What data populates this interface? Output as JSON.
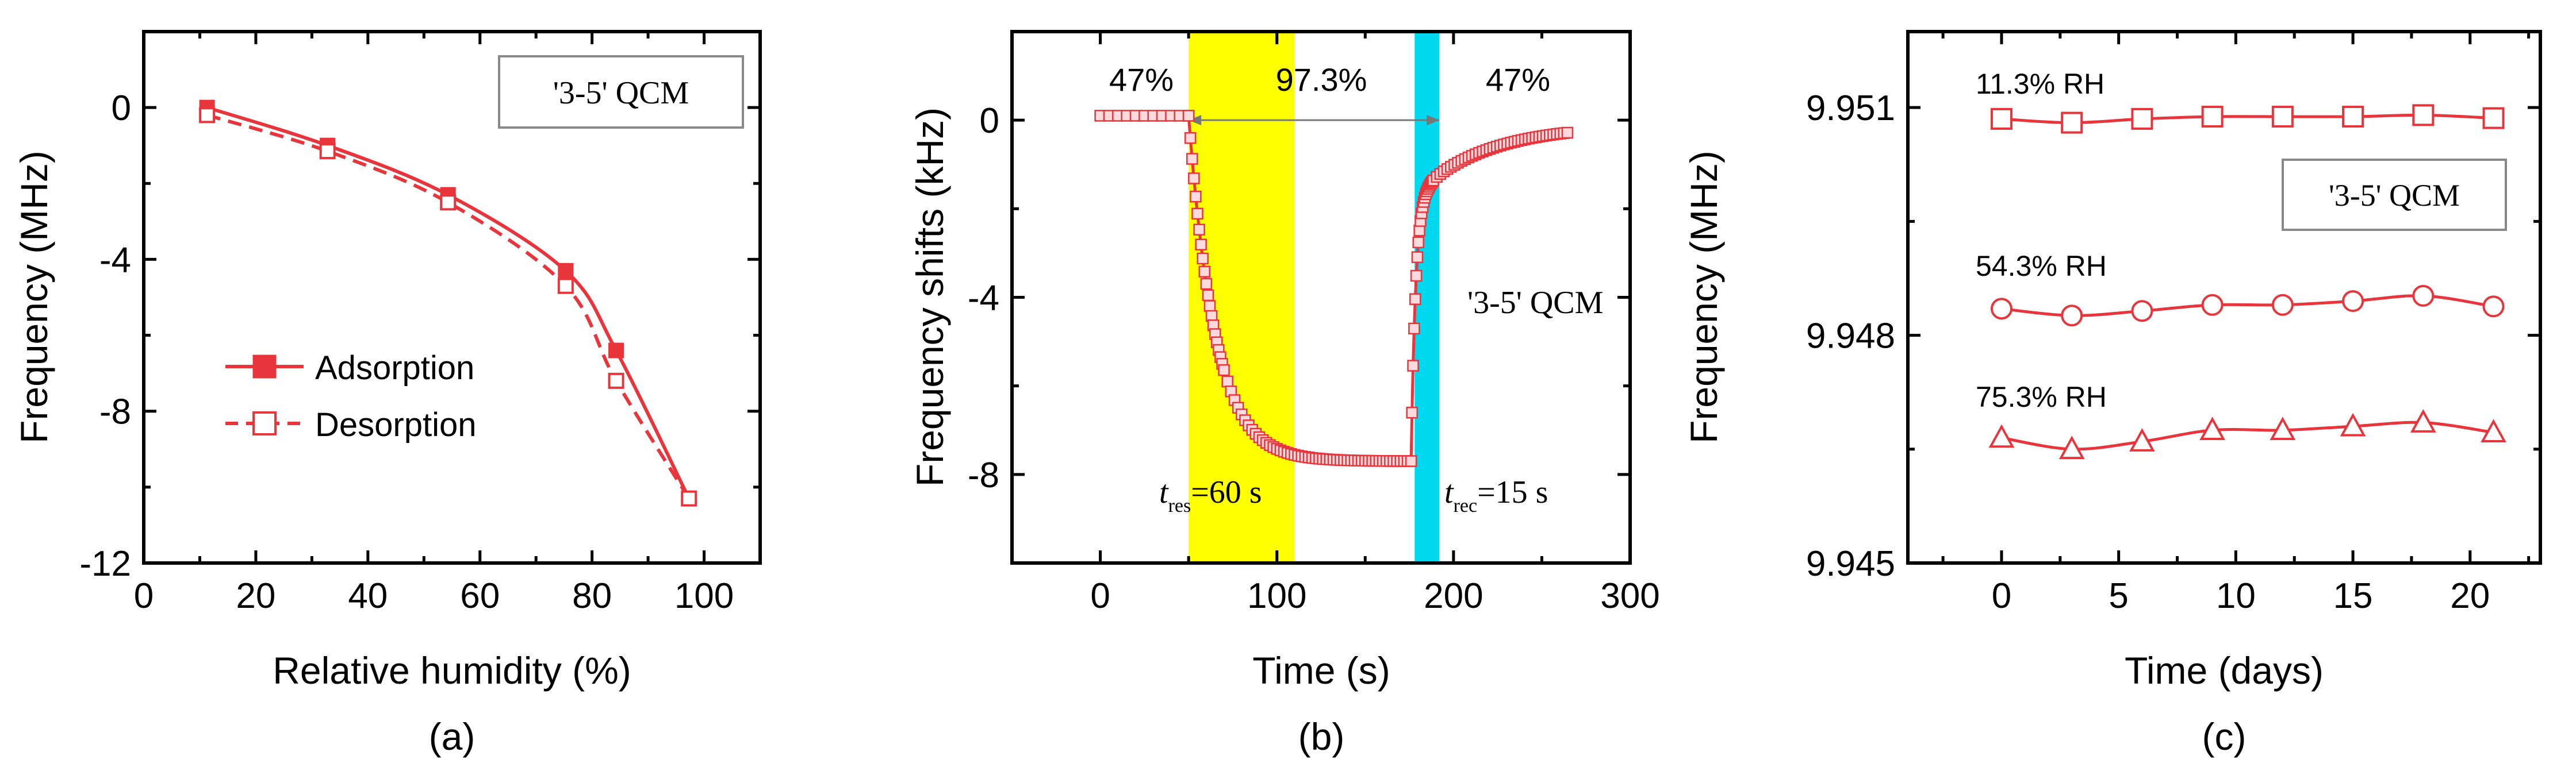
{
  "colors": {
    "series": "#e8343b",
    "marker_fill_light": "#ffd9dc",
    "response_band": "#ffff00",
    "recovery_band": "#00d8f0",
    "axis": "#000000",
    "box_border": "#888888"
  },
  "chart_data": [
    {
      "panel": "(a)",
      "type": "line",
      "xlabel": "Relative humidity (%)",
      "ylabel": "Frequency (MHz)",
      "xlim": [
        0,
        110
      ],
      "ylim": [
        -12,
        2
      ],
      "xticks": [
        0,
        20,
        40,
        60,
        80,
        100
      ],
      "xtick_labels": [
        "0",
        "20",
        "40",
        "60",
        "80",
        "100"
      ],
      "yticks": [
        0,
        -4,
        -8,
        -12
      ],
      "ytick_labels": [
        "0",
        "-4",
        "-8",
        "-12"
      ],
      "box_label": "'3-5' QCM",
      "series": [
        {
          "name": "Adsorption",
          "style": "solid",
          "marker": "filled-square",
          "x": [
            11.3,
            32.8,
            54.3,
            75.3,
            84.3,
            97.3
          ],
          "y": [
            0.0,
            -1.0,
            -2.3,
            -4.3,
            -6.4,
            -10.3
          ]
        },
        {
          "name": "Desorption",
          "style": "dashed",
          "marker": "open-square",
          "x": [
            11.3,
            32.8,
            54.3,
            75.3,
            84.3,
            97.3
          ],
          "y": [
            -0.2,
            -1.15,
            -2.5,
            -4.7,
            -7.2,
            -10.3
          ]
        }
      ]
    },
    {
      "panel": "(b)",
      "type": "line",
      "xlabel": "Time (s)",
      "ylabel": "Frequency shifts (kHz)",
      "xlim": [
        -50,
        300
      ],
      "ylim": [
        -10,
        2
      ],
      "xticks": [
        0,
        100,
        200,
        300
      ],
      "xtick_labels": [
        "0",
        "100",
        "200",
        "300"
      ],
      "yticks": [
        0,
        -4,
        -8
      ],
      "ytick_labels": [
        "0",
        "-4",
        "-8"
      ],
      "box_label": "'3-5' QCM",
      "phase_labels": [
        "47%",
        "97.3%",
        "47%"
      ],
      "response_band": [
        50,
        110
      ],
      "recovery_band": [
        178,
        192
      ],
      "arrow_span": [
        50,
        192
      ],
      "annotations": {
        "response": {
          "symbol": "t",
          "subscript": "res",
          "value": "=60 s"
        },
        "recovery": {
          "symbol": "t",
          "subscript": "rec",
          "value": "=15 s"
        }
      },
      "series": [
        {
          "name": "Frequency shift",
          "marker": "open-square",
          "segments": [
            {
              "phase": "baseline",
              "x_start": 0,
              "x_end": 50,
              "level": 0.1
            },
            {
              "phase": "response",
              "x_start": 50,
              "x_end": 176,
              "from": 0.1,
              "to": -7.7,
              "tau": 15
            },
            {
              "phase": "recovery",
              "x_start": 176,
              "x_end": 265,
              "from": -7.7,
              "to": -0.1,
              "tau": 10
            }
          ]
        }
      ]
    },
    {
      "panel": "(c)",
      "type": "line",
      "xlabel": "Time (days)",
      "ylabel": "Frequency (MHz)",
      "xlim": [
        -4,
        23
      ],
      "ylim": [
        9.945,
        9.952
      ],
      "xticks": [
        0,
        5,
        10,
        15,
        20
      ],
      "xtick_labels": [
        "0",
        "5",
        "10",
        "15",
        "20"
      ],
      "yticks": [
        9.945,
        9.948,
        9.951
      ],
      "ytick_labels": [
        "9.945",
        "9.948",
        "9.951"
      ],
      "box_label": "'3-5' QCM",
      "x": [
        0,
        3,
        6,
        9,
        12,
        15,
        18,
        21
      ],
      "series": [
        {
          "name": "11.3% RH",
          "marker": "open-square",
          "y": [
            9.95085,
            9.9508,
            9.95085,
            9.95088,
            9.95088,
            9.95088,
            9.9509,
            9.95086
          ]
        },
        {
          "name": "54.3% RH",
          "marker": "open-circle",
          "y": [
            9.94835,
            9.94826,
            9.94832,
            9.9484,
            9.9484,
            9.94845,
            9.94852,
            9.94838
          ]
        },
        {
          "name": "75.3% RH",
          "marker": "open-triangle",
          "y": [
            9.94665,
            9.9465,
            9.9466,
            9.94675,
            9.94675,
            9.9468,
            9.94685,
            9.94672
          ]
        }
      ]
    }
  ]
}
